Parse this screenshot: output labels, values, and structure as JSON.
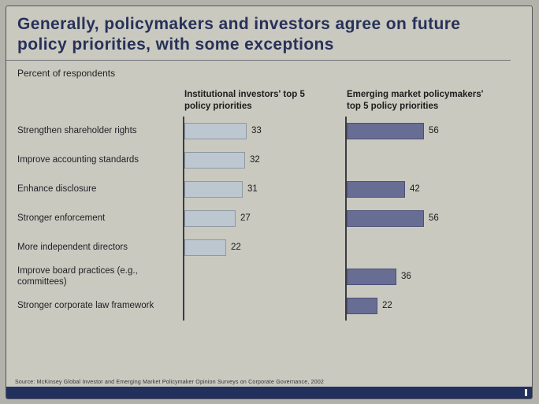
{
  "slide": {
    "title": "Generally, policymakers and investors agree on future policy priorities, with some exceptions",
    "subtitle": "Percent of respondents",
    "source": "Source: McKinsey Global Investor and Emerging Market Policymaker Opinion Surveys on Corporate Governance, 2002"
  },
  "chart_data": {
    "type": "bar",
    "orientation": "horizontal",
    "title": "Generally, policymakers and investors agree on future policy priorities, with some exceptions",
    "subtitle": "Percent of respondents",
    "unit": "percent",
    "categories": [
      "Strengthen shareholder rights",
      "Improve accounting standards",
      "Enhance disclosure",
      "Stronger enforcement",
      "More independent directors",
      "Improve board practices (e.g., committees)",
      "Stronger corporate law framework"
    ],
    "series": [
      {
        "name": "Institutional investors' top 5 policy priorities",
        "color": "#bdc7d0",
        "values": [
          33,
          32,
          31,
          27,
          22,
          null,
          null
        ]
      },
      {
        "name": "Emerging market policymakers' top 5 policy priorities",
        "color": "#686d93",
        "values": [
          56,
          null,
          42,
          56,
          null,
          36,
          22
        ]
      }
    ],
    "xlim": [
      0,
      60
    ],
    "value_labels": true,
    "grid": false,
    "legend_position": "column-headers"
  },
  "colors": {
    "slide_bg": "#c9c9c0",
    "page_bg": "#b2b2aa",
    "title_text": "#273159",
    "bar_investors": "#bdc7d0",
    "bar_policymakers": "#686d93",
    "axis_line": "#3c3c42",
    "footer_bar": "#22305e"
  }
}
